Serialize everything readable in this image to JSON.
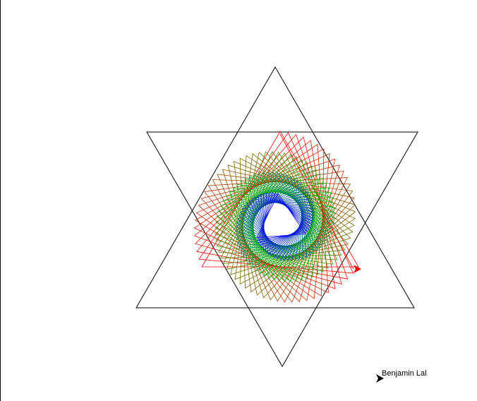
{
  "canvas": {
    "background": "#ffffff",
    "border_color": "#000000"
  },
  "star": {
    "line_color": "#000000"
  },
  "spiral": {
    "colors": {
      "outer": "#ff0000",
      "middle": "#00c800",
      "inner": "#0000ff"
    }
  },
  "turtles": {
    "drawing_turtle": {
      "icon": "arrow-cursor-icon",
      "color": "#ff0000"
    },
    "signature_turtle": {
      "icon": "arrow-cursor-icon",
      "color": "#000000"
    }
  },
  "signature": {
    "text": "Benjamin Lal"
  }
}
